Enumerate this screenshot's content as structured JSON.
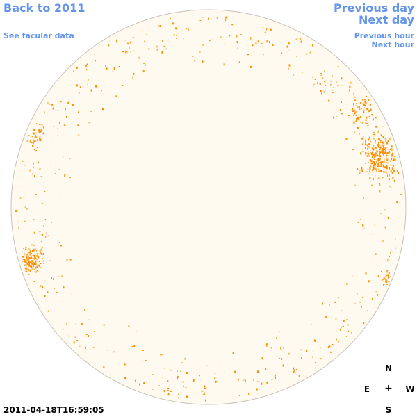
{
  "nav": {
    "back_to_year": "Back to 2011",
    "see_facular": "See facular data",
    "previous_day": "Previous day",
    "next_day": "Next day",
    "previous_hour": "Previous hour",
    "next_hour": "Next hour"
  },
  "timestamp": "2011-04-18T16:59:05",
  "compass": {
    "north": "N",
    "south": "S",
    "east": "E",
    "west": "W",
    "center": "+"
  },
  "colors": {
    "link": "#6495ED",
    "disk_fill": "#FFFAF0",
    "disk_border": "#C8C0B8",
    "facula": "#FF8C00"
  }
}
